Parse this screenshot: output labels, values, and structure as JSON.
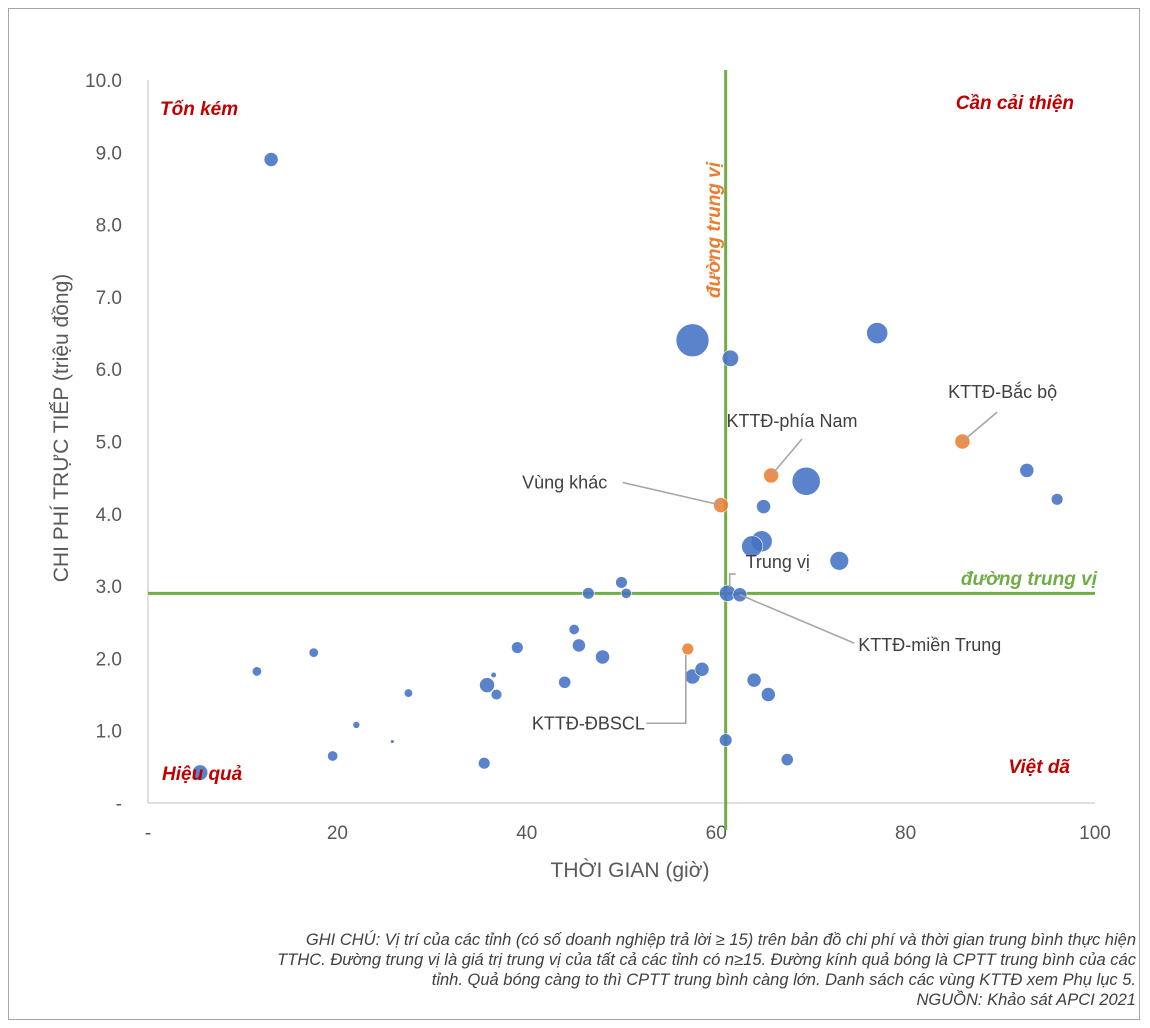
{
  "chart_data": {
    "type": "scatter",
    "xlabel": "THỜI GIAN (giờ)",
    "ylabel": "CHI PHÍ TRỰC TIẾP (triệu đồng)",
    "xlim": [
      0,
      100
    ],
    "ylim": [
      0,
      10
    ],
    "x_ticks": [
      "-",
      "20",
      "40",
      "60",
      "80",
      "100"
    ],
    "y_ticks": [
      "-",
      "1.0",
      "2.0",
      "3.0",
      "4.0",
      "5.0",
      "6.0",
      "7.0",
      "8.0",
      "9.0",
      "10.0"
    ],
    "grid": false,
    "median_x": 61,
    "median_y": 2.9,
    "median_label_vertical": "đường trung vị",
    "median_label_horizontal": "đường trung vị",
    "colors": {
      "province": "#4472c4",
      "region": "#ed7d31",
      "median_line": "#70ad47",
      "quadrant_text": "#c00000",
      "axis": "#bfbfbf"
    },
    "quadrants": {
      "top_left": "Tốn kém",
      "top_right": "Cần cải thiện",
      "bottom_left": "Hiệu quả",
      "bottom_right": "Việt dã"
    },
    "series": [
      {
        "color": "#4472c4",
        "points": [
          {
            "x": 13,
            "y": 8.9,
            "size": 3
          },
          {
            "x": 57.5,
            "y": 6.4,
            "size": 7
          },
          {
            "x": 61.5,
            "y": 6.15,
            "size": 3.5
          },
          {
            "x": 77,
            "y": 6.5,
            "size": 4.5
          },
          {
            "x": 69.5,
            "y": 4.45,
            "size": 6
          },
          {
            "x": 92.8,
            "y": 4.6,
            "size": 3
          },
          {
            "x": 96,
            "y": 4.2,
            "size": 2.5
          },
          {
            "x": 65,
            "y": 4.1,
            "size": 3
          },
          {
            "x": 64.8,
            "y": 3.62,
            "size": 4.5
          },
          {
            "x": 63.8,
            "y": 3.55,
            "size": 4.5
          },
          {
            "x": 73,
            "y": 3.35,
            "size": 4
          },
          {
            "x": 50,
            "y": 3.05,
            "size": 2.5
          },
          {
            "x": 46.5,
            "y": 2.9,
            "size": 2.5
          },
          {
            "x": 50.5,
            "y": 2.9,
            "size": 2.2
          },
          {
            "x": 61.2,
            "y": 2.9,
            "size": 3.5
          },
          {
            "x": 62.5,
            "y": 2.88,
            "size": 3
          },
          {
            "x": 45,
            "y": 2.4,
            "size": 2.2
          },
          {
            "x": 39,
            "y": 2.15,
            "size": 2.5
          },
          {
            "x": 45.5,
            "y": 2.18,
            "size": 2.8
          },
          {
            "x": 48,
            "y": 2.02,
            "size": 3
          },
          {
            "x": 17.5,
            "y": 2.08,
            "size": 2
          },
          {
            "x": 11.5,
            "y": 1.82,
            "size": 2
          },
          {
            "x": 36.5,
            "y": 1.77,
            "size": 1.2
          },
          {
            "x": 35.8,
            "y": 1.63,
            "size": 3.2
          },
          {
            "x": 36.8,
            "y": 1.5,
            "size": 2.3
          },
          {
            "x": 27.5,
            "y": 1.52,
            "size": 1.8
          },
          {
            "x": 44,
            "y": 1.67,
            "size": 2.6
          },
          {
            "x": 57.5,
            "y": 1.75,
            "size": 3.2
          },
          {
            "x": 58.5,
            "y": 1.85,
            "size": 3
          },
          {
            "x": 64,
            "y": 1.7,
            "size": 3
          },
          {
            "x": 65.5,
            "y": 1.5,
            "size": 3
          },
          {
            "x": 22,
            "y": 1.08,
            "size": 1.5
          },
          {
            "x": 25.8,
            "y": 0.85,
            "size": 0.8
          },
          {
            "x": 19.5,
            "y": 0.65,
            "size": 2.2
          },
          {
            "x": 35.5,
            "y": 0.55,
            "size": 2.5
          },
          {
            "x": 61,
            "y": 0.87,
            "size": 2.7
          },
          {
            "x": 67.5,
            "y": 0.6,
            "size": 2.6
          },
          {
            "x": 5.5,
            "y": 0.42,
            "size": 3.3
          }
        ]
      },
      {
        "color": "#ed7d31",
        "points": [
          {
            "x": 86,
            "y": 5.0,
            "size": 3.2
          },
          {
            "x": 65.8,
            "y": 4.53,
            "size": 3.2
          },
          {
            "x": 60.5,
            "y": 4.12,
            "size": 3.2
          },
          {
            "x": 57,
            "y": 2.13,
            "size": 2.5
          }
        ]
      }
    ],
    "annotations": [
      {
        "text": "KTTĐ-Bắc bộ",
        "point": [
          86,
          5.0
        ],
        "label_at": [
          96,
          5.6
        ],
        "anchor": "end"
      },
      {
        "text": "KTTĐ-phía Nam",
        "point": [
          65.8,
          4.53
        ],
        "label_at": [
          68,
          5.2
        ],
        "anchor": "middle"
      },
      {
        "text": "Vùng khác",
        "point": [
          60.5,
          4.12
        ],
        "label_at": [
          44,
          4.35
        ],
        "anchor": "middle"
      },
      {
        "text": "Trung vị",
        "point": [
          61,
          2.9
        ],
        "label_at": [
          66.5,
          3.25
        ],
        "anchor": "middle"
      },
      {
        "text": "KTTĐ-miền Trung",
        "point": [
          62.5,
          2.88
        ],
        "label_at": [
          75,
          2.1
        ],
        "anchor": "start"
      },
      {
        "text": "KTTĐ-ĐBSCL",
        "point": [
          57,
          2.13
        ],
        "label_at": [
          46.5,
          1.02
        ],
        "anchor": "middle"
      }
    ]
  },
  "footnote": {
    "line1": "GHI CHÚ: Vị trí của các tỉnh (có số doanh nghiệp trả lời ≥ 15) trên bản đồ chi phí và thời gian trung bình thực hiện",
    "line2": "TTHC. Đường trung vị là giá trị trung vị của tất cả các tỉnh có n≥15. Đường kính quả bóng là CPTT trung bình của các",
    "line3": "tỉnh. Quả bóng càng to thì CPTT trung bình càng lớn. Danh sách các vùng KTTĐ xem Phụ lục 5.",
    "line4": "NGUỒN: Khảo sát APCI 2021"
  }
}
